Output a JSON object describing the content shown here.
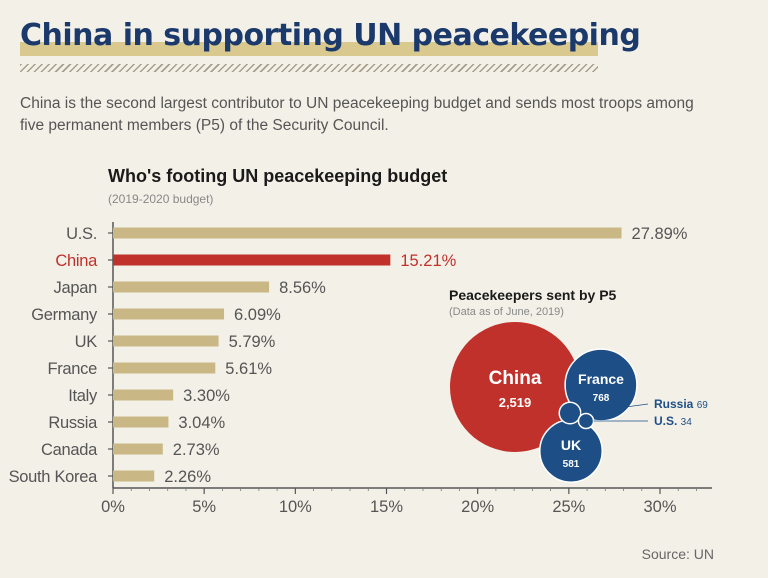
{
  "header": {
    "title": "China in supporting UN peacekeeping",
    "intro": "China is the second largest contributor to UN peacekeeping budget and sends most troops among five permanent members (P5) of the Security Council."
  },
  "colors": {
    "title": "#1b3a6b",
    "bar": "#c9b785",
    "highlight": "#c0312b",
    "p5_blue": "#1d4f86"
  },
  "chart_data": [
    {
      "type": "bar",
      "orientation": "horizontal",
      "title": "Who's footing UN peacekeeping budget",
      "subtitle": "(2019-2020 budget)",
      "categories": [
        "U.S.",
        "China",
        "Japan",
        "Germany",
        "UK",
        "France",
        "Italy",
        "Russia",
        "Canada",
        "South Korea"
      ],
      "values": [
        27.89,
        15.21,
        8.56,
        6.09,
        5.79,
        5.61,
        3.3,
        3.04,
        2.73,
        2.26
      ],
      "value_labels": [
        "27.89%",
        "15.21%",
        "8.56%",
        "6.09%",
        "5.79%",
        "5.61%",
        "3.30%",
        "3.04%",
        "2.73%",
        "2.26%"
      ],
      "highlight": "China",
      "xlim": [
        0,
        30
      ],
      "xticks": [
        0,
        5,
        10,
        15,
        20,
        25,
        30
      ],
      "xtick_labels": [
        "0%",
        "5%",
        "10%",
        "15%",
        "20%",
        "25%",
        "30%"
      ],
      "grid": false
    },
    {
      "type": "bubble",
      "title": "Peacekeepers sent by P5",
      "subtitle": "(Data as of June, 2019)",
      "items": [
        {
          "name": "China",
          "value": 2519,
          "label": "2,519"
        },
        {
          "name": "France",
          "value": 768,
          "label": "768"
        },
        {
          "name": "UK",
          "value": 581,
          "label": "581"
        },
        {
          "name": "Russia",
          "value": 69,
          "label": "69"
        },
        {
          "name": "U.S.",
          "value": 34,
          "label": "34"
        }
      ]
    }
  ],
  "source": "Source: UN"
}
